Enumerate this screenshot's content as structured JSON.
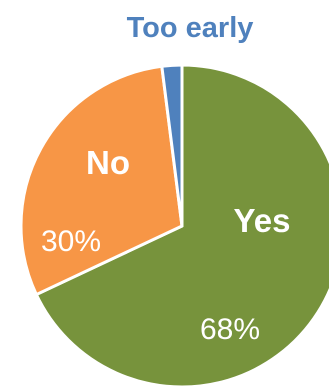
{
  "chart_data": {
    "type": "pie",
    "slices": [
      {
        "name": "Yes",
        "value": 68,
        "value_label": "68%",
        "color": "#77933c"
      },
      {
        "name": "No",
        "value": 30,
        "value_label": "30%",
        "color": "#f79646"
      },
      {
        "name": "Too early",
        "value": 2,
        "value_label": "",
        "color": "#4f81bd"
      }
    ],
    "slice_border": "#ffffff",
    "label_colors": {
      "Yes": "#ffffff",
      "No": "#ffffff",
      "Too early": "#4f81bd"
    },
    "start_angle_deg": 0,
    "direction": "clockwise"
  }
}
